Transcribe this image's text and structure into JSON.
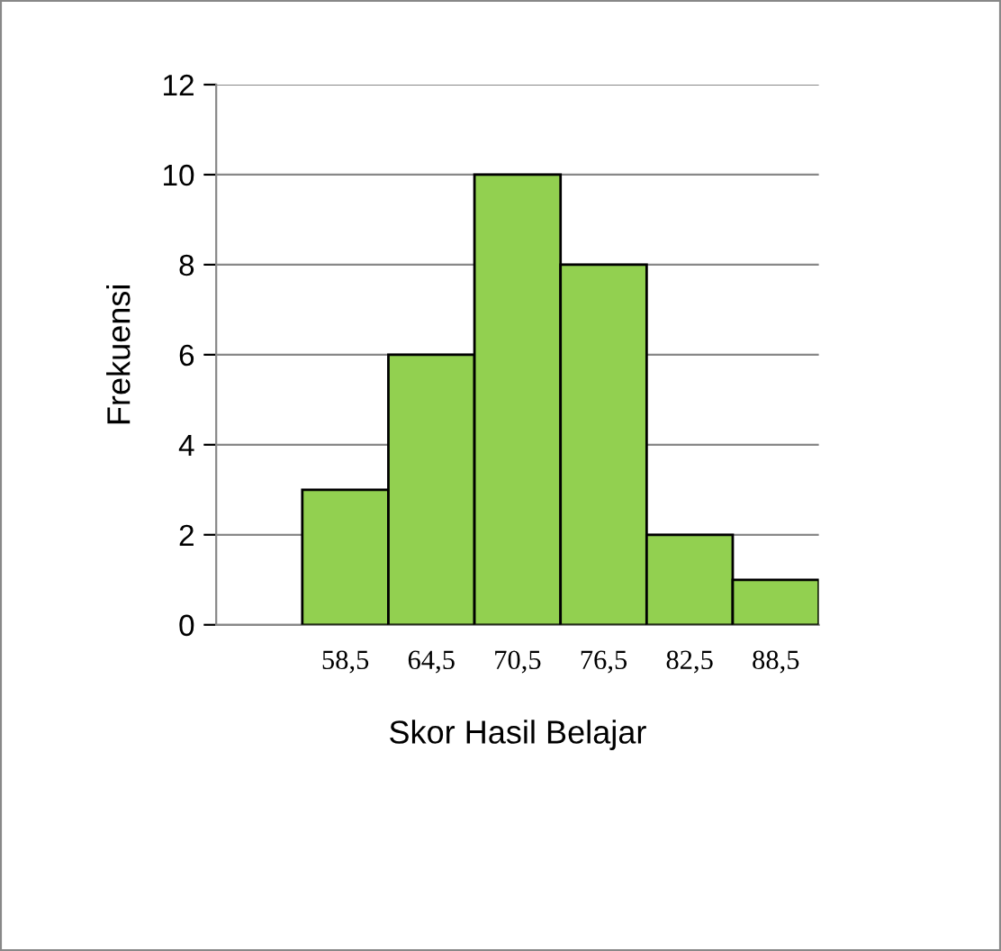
{
  "chart_data": {
    "type": "bar",
    "xlabel": "Skor Hasil Belajar",
    "ylabel": "Frekuensi",
    "categories": [
      null,
      "58,5",
      "64,5",
      "70,5",
      "76,5",
      "82,5",
      "88,5"
    ],
    "values": [
      null,
      3,
      6,
      10,
      8,
      2,
      1
    ],
    "color": "#92d050",
    "ylim": [
      0,
      12
    ],
    "yticks": [
      0,
      2,
      4,
      6,
      8,
      10,
      12
    ],
    "grid": "y"
  }
}
